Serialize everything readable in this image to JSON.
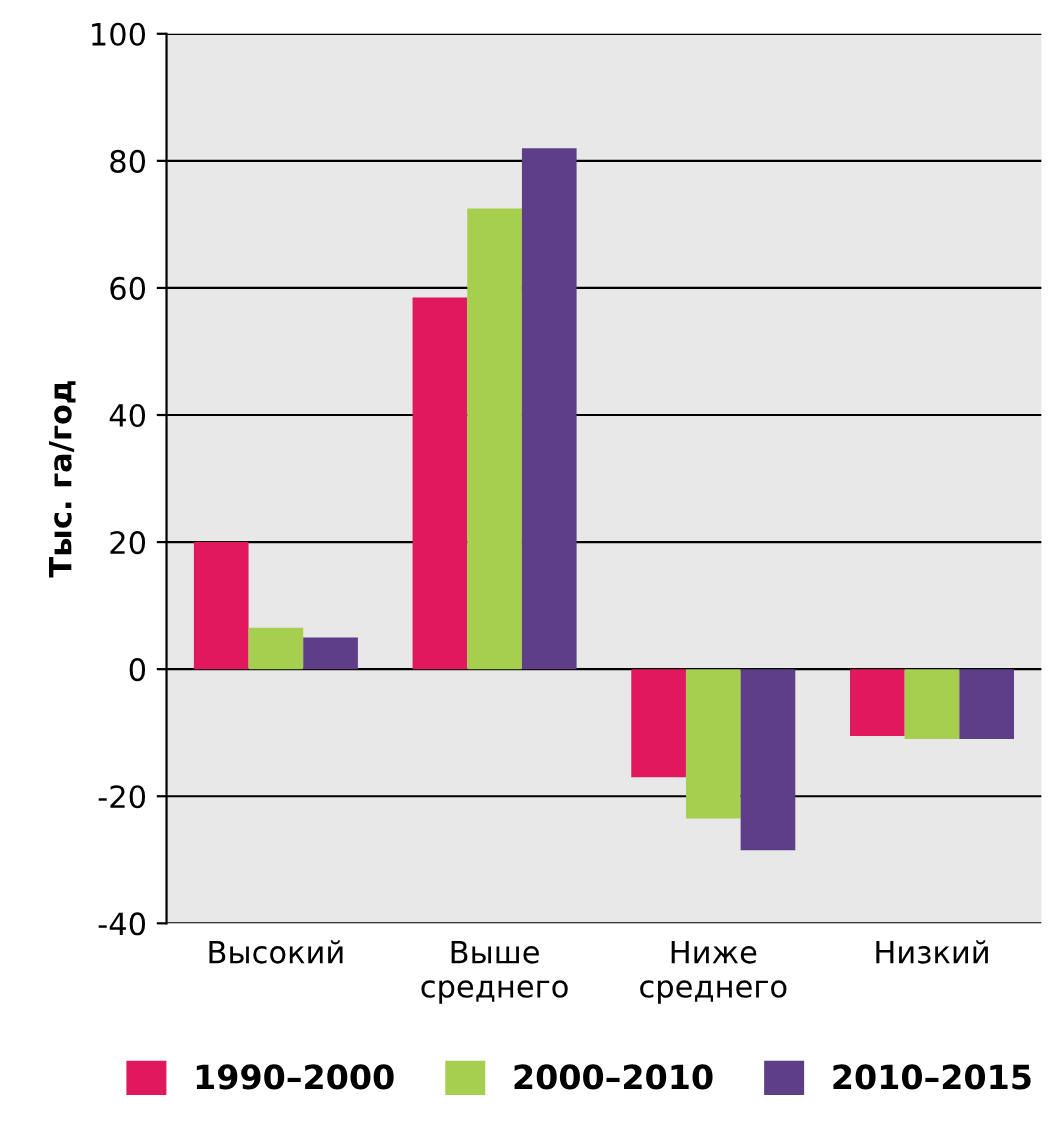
{
  "chart_data": {
    "type": "bar",
    "ylabel": "Тыс. га/год",
    "categories": [
      "Высокий",
      "Выше\nсреднего",
      "Ниже\nсреднего",
      "Низкий"
    ],
    "series": [
      {
        "name": "1990–2000",
        "color": "#e0195e",
        "values": [
          20,
          58.5,
          -17,
          -10.5
        ]
      },
      {
        "name": "2000–2010",
        "color": "#a6ce4f",
        "values": [
          6.5,
          72.5,
          -23.5,
          -11
        ]
      },
      {
        "name": "2010–2015",
        "color": "#5e3f87",
        "values": [
          5,
          82,
          -28.5,
          -11
        ]
      }
    ],
    "ylim": [
      -40,
      100
    ],
    "yticks": [
      -40,
      -20,
      0,
      20,
      40,
      60,
      80,
      100
    ],
    "grid": "y",
    "legend": "bottom"
  }
}
